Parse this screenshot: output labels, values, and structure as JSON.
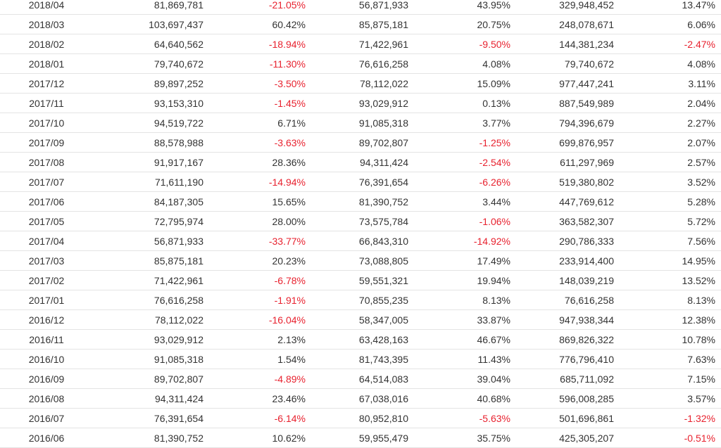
{
  "colors": {
    "text": "#333333",
    "negative": "#e8222f",
    "border": "#e4e4e4"
  },
  "rows": [
    [
      "2018/04",
      "81,869,781",
      "-21.05%",
      "56,871,933",
      "43.95%",
      "329,948,452",
      "13.47%"
    ],
    [
      "2018/03",
      "103,697,437",
      "60.42%",
      "85,875,181",
      "20.75%",
      "248,078,671",
      "6.06%"
    ],
    [
      "2018/02",
      "64,640,562",
      "-18.94%",
      "71,422,961",
      "-9.50%",
      "144,381,234",
      "-2.47%"
    ],
    [
      "2018/01",
      "79,740,672",
      "-11.30%",
      "76,616,258",
      "4.08%",
      "79,740,672",
      "4.08%"
    ],
    [
      "2017/12",
      "89,897,252",
      "-3.50%",
      "78,112,022",
      "15.09%",
      "977,447,241",
      "3.11%"
    ],
    [
      "2017/11",
      "93,153,310",
      "-1.45%",
      "93,029,912",
      "0.13%",
      "887,549,989",
      "2.04%"
    ],
    [
      "2017/10",
      "94,519,722",
      "6.71%",
      "91,085,318",
      "3.77%",
      "794,396,679",
      "2.27%"
    ],
    [
      "2017/09",
      "88,578,988",
      "-3.63%",
      "89,702,807",
      "-1.25%",
      "699,876,957",
      "2.07%"
    ],
    [
      "2017/08",
      "91,917,167",
      "28.36%",
      "94,311,424",
      "-2.54%",
      "611,297,969",
      "2.57%"
    ],
    [
      "2017/07",
      "71,611,190",
      "-14.94%",
      "76,391,654",
      "-6.26%",
      "519,380,802",
      "3.52%"
    ],
    [
      "2017/06",
      "84,187,305",
      "15.65%",
      "81,390,752",
      "3.44%",
      "447,769,612",
      "5.28%"
    ],
    [
      "2017/05",
      "72,795,974",
      "28.00%",
      "73,575,784",
      "-1.06%",
      "363,582,307",
      "5.72%"
    ],
    [
      "2017/04",
      "56,871,933",
      "-33.77%",
      "66,843,310",
      "-14.92%",
      "290,786,333",
      "7.56%"
    ],
    [
      "2017/03",
      "85,875,181",
      "20.23%",
      "73,088,805",
      "17.49%",
      "233,914,400",
      "14.95%"
    ],
    [
      "2017/02",
      "71,422,961",
      "-6.78%",
      "59,551,321",
      "19.94%",
      "148,039,219",
      "13.52%"
    ],
    [
      "2017/01",
      "76,616,258",
      "-1.91%",
      "70,855,235",
      "8.13%",
      "76,616,258",
      "8.13%"
    ],
    [
      "2016/12",
      "78,112,022",
      "-16.04%",
      "58,347,005",
      "33.87%",
      "947,938,344",
      "12.38%"
    ],
    [
      "2016/11",
      "93,029,912",
      "2.13%",
      "63,428,163",
      "46.67%",
      "869,826,322",
      "10.78%"
    ],
    [
      "2016/10",
      "91,085,318",
      "1.54%",
      "81,743,395",
      "11.43%",
      "776,796,410",
      "7.63%"
    ],
    [
      "2016/09",
      "89,702,807",
      "-4.89%",
      "64,514,083",
      "39.04%",
      "685,711,092",
      "7.15%"
    ],
    [
      "2016/08",
      "94,311,424",
      "23.46%",
      "67,038,016",
      "40.68%",
      "596,008,285",
      "3.57%"
    ],
    [
      "2016/07",
      "76,391,654",
      "-6.14%",
      "80,952,810",
      "-5.63%",
      "501,696,861",
      "-1.32%"
    ],
    [
      "2016/06",
      "81,390,752",
      "10.62%",
      "59,955,479",
      "35.75%",
      "425,305,207",
      "-0.51%"
    ]
  ]
}
